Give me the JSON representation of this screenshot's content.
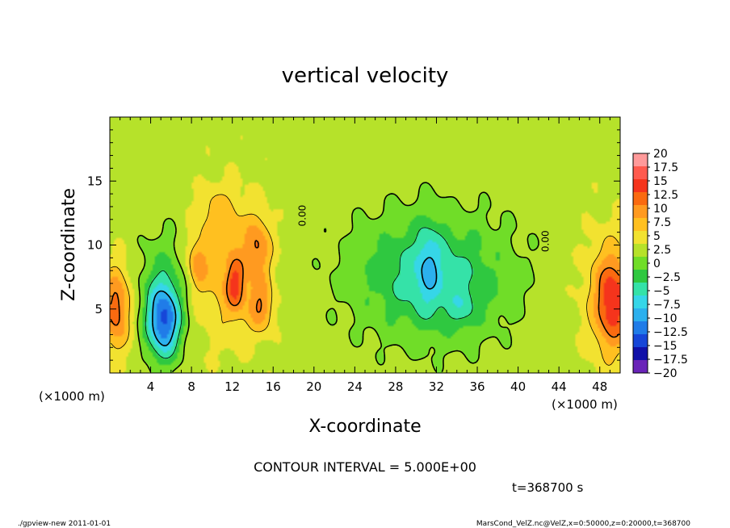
{
  "chart_data": {
    "type": "heatmap",
    "title": "vertical velocity",
    "xlabel": "X-coordinate",
    "ylabel": "Z-coordinate",
    "x_unit_left": "(×1000 m)",
    "x_unit_right": "(×1000 m)",
    "xlim": [
      0,
      50
    ],
    "ylim": [
      0,
      20
    ],
    "x_ticks": [
      4,
      8,
      12,
      16,
      20,
      24,
      28,
      32,
      36,
      40,
      44,
      48
    ],
    "y_ticks": [
      5,
      10,
      15
    ],
    "colorbar": {
      "levels": [
        "20",
        "17.5",
        "15",
        "12.5",
        "10",
        "7.5",
        "5",
        "2.5",
        "0",
        "−2.5",
        "−5",
        "−7.5",
        "−10",
        "−12.5",
        "−15",
        "−17.5",
        "−20"
      ],
      "colors": [
        "#ff9a9a",
        "#ff5a4e",
        "#f5341c",
        "#fa6a10",
        "#ff9a20",
        "#ffc020",
        "#f2e230",
        "#b6e22a",
        "#70dd28",
        "#2fc840",
        "#35e2a8",
        "#36d6e8",
        "#2cb0ee",
        "#207ce8",
        "#1646d8",
        "#1010a8",
        "#6a24b8"
      ]
    },
    "field": {
      "background": 1.5,
      "features": [
        {
          "x": 0.6,
          "z": 5.0,
          "rx": 1.4,
          "rz": 3.2,
          "amp": 10
        },
        {
          "x": 5.3,
          "z": 4.0,
          "rx": 1.6,
          "rz": 2.8,
          "amp": -14
        },
        {
          "x": 5.2,
          "z": 6.5,
          "rx": 2.2,
          "rz": 4.6,
          "amp": -5
        },
        {
          "x": 11.5,
          "z": 8.0,
          "rx": 3.4,
          "rz": 5.5,
          "amp": 5
        },
        {
          "x": 8.6,
          "z": 8.5,
          "rx": 0.9,
          "rz": 1.8,
          "amp": 6
        },
        {
          "x": 12.3,
          "z": 6.8,
          "rx": 0.9,
          "rz": 2.0,
          "amp": 8
        },
        {
          "x": 14.5,
          "z": 9.8,
          "rx": 1.3,
          "rz": 2.4,
          "amp": 7
        },
        {
          "x": 14.8,
          "z": 5.2,
          "rx": 1.2,
          "rz": 2.0,
          "amp": 7
        },
        {
          "x": 10.5,
          "z": 12.5,
          "rx": 1.8,
          "rz": 2.0,
          "amp": 3
        },
        {
          "x": 31.5,
          "z": 7.5,
          "rx": 7.5,
          "rz": 4.8,
          "amp": -8
        },
        {
          "x": 31.2,
          "z": 8.5,
          "rx": 1.2,
          "rz": 3.2,
          "amp": -5
        },
        {
          "x": 34.5,
          "z": 5.0,
          "rx": 1.6,
          "rz": 1.6,
          "amp": -3
        },
        {
          "x": 49.3,
          "z": 5.6,
          "rx": 1.7,
          "rz": 3.6,
          "amp": 11
        },
        {
          "x": 48.5,
          "z": 6.0,
          "rx": 2.8,
          "rz": 5.5,
          "amp": 3
        }
      ]
    },
    "contour_labels": [
      "0.00",
      "0.00"
    ],
    "annotation": "CONTOUR INTERVAL = 5.000E+00",
    "time_label": "t=368700 s"
  },
  "footer": {
    "left": "./gpview-new   2011-01-01",
    "right": "MarsCond_VelZ.nc@VelZ,x=0:50000,z=0:20000,t=368700"
  }
}
